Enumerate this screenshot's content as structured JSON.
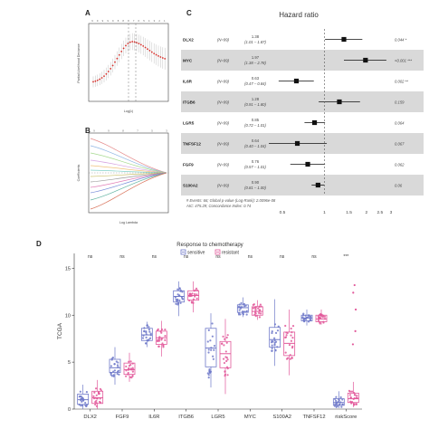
{
  "panels": {
    "a": "A",
    "b": "B",
    "c": "C",
    "d": "D"
  },
  "panel_a": {
    "ylabel": "Partial Likelihood Deviance",
    "xlabel": "Log(λ)",
    "top_counts": [
      "9",
      "9",
      "9",
      "9",
      "9",
      "8",
      "8",
      "8",
      "7",
      "6",
      "5",
      "4",
      "3",
      "2",
      "1"
    ]
  },
  "panel_b": {
    "ylabel": "Coefficients",
    "xlabel": "Log Lambda",
    "top_counts": [
      "9",
      "9",
      "8",
      "7",
      "5",
      "3"
    ]
  },
  "forest": {
    "title": "Hazard ratio",
    "footnote_1": "# Events: 66; Global p-value (Log-Rank): 2.0096e-08",
    "footnote_2": "AIC: 475.29; Concordance Index: 0.74",
    "axis_ticks": [
      "0.5",
      "1",
      "1.5",
      "2",
      "2.5",
      "3"
    ],
    "rows": [
      {
        "name": "DLX2",
        "n": "(N=99)",
        "hr": "1.38",
        "ci": "(1.01 – 1.87)",
        "p": "0.044 *",
        "shaded": false
      },
      {
        "name": "MYC",
        "n": "(N=99)",
        "hr": "1.97",
        "ci": "(1.38 – 2.78)",
        "p": "<0.001 ***",
        "shaded": true
      },
      {
        "name": "IL6R",
        "n": "(N=99)",
        "hr": "0.63",
        "ci": "(0.47 – 0.84)",
        "p": "0.002 **",
        "shaded": false
      },
      {
        "name": "ITGB6",
        "n": "(N=99)",
        "hr": "1.28",
        "ci": "(0.91 – 1.80)",
        "p": "0.159",
        "shaded": true
      },
      {
        "name": "LGR5",
        "n": "(N=99)",
        "hr": "0.85",
        "ci": "(0.72 – 1.01)",
        "p": "0.064",
        "shaded": false
      },
      {
        "name": "TNFSF12",
        "n": "(N=99)",
        "hr": "0.64",
        "ci": "(0.40 – 1.04)",
        "p": "0.067",
        "shaded": true
      },
      {
        "name": "FGF9",
        "n": "(N=99)",
        "hr": "0.76",
        "ci": "(0.57 – 1.01)",
        "p": "0.062",
        "shaded": false
      },
      {
        "name": "S100A2",
        "n": "(N=99)",
        "hr": "0.90",
        "ci": "(0.81 – 1.00)",
        "p": "0.06",
        "shaded": true
      }
    ]
  },
  "chart_data": {
    "type": "box",
    "title": "Response to chemotherapy",
    "legend": {
      "title": "Response to chemotherapy",
      "items": [
        "sensitive",
        "resistant"
      ],
      "placement": "top"
    },
    "ylabel": "TCGA",
    "xlabel": "",
    "ylim": [
      0,
      16
    ],
    "yticks": [
      "0",
      "5",
      "10",
      "15"
    ],
    "categories": [
      "DLX2",
      "FGF9",
      "IL6R",
      "ITGB6",
      "LGR5",
      "MYC",
      "S100A2",
      "TNFSF12",
      "riskScore"
    ],
    "significance": [
      "ns",
      "ns",
      "ns",
      "ns",
      "ns",
      "ns",
      "ns",
      "ns",
      "***"
    ],
    "series": [
      {
        "name": "sensitive",
        "color": "#6f79c9",
        "boxes": [
          {
            "min": 0.0,
            "q1": 0.5,
            "median": 1.0,
            "q3": 1.6,
            "max": 2.6
          },
          {
            "min": 2.6,
            "q1": 3.9,
            "median": 4.4,
            "q3": 5.3,
            "max": 6.6
          },
          {
            "min": 6.6,
            "q1": 7.3,
            "median": 7.9,
            "q3": 8.6,
            "max": 9.3
          },
          {
            "min": 9.9,
            "q1": 11.4,
            "median": 12.0,
            "q3": 12.6,
            "max": 13.6
          },
          {
            "min": 2.3,
            "q1": 4.5,
            "median": 6.5,
            "q3": 8.6,
            "max": 10.2
          },
          {
            "min": 9.8,
            "q1": 10.3,
            "median": 10.8,
            "q3": 11.1,
            "max": 11.9
          },
          {
            "min": 4.6,
            "q1": 6.6,
            "median": 7.4,
            "q3": 8.7,
            "max": 11.7
          },
          {
            "min": 8.9,
            "q1": 9.4,
            "median": 9.7,
            "q3": 10.0,
            "max": 10.6
          },
          {
            "min": 0.1,
            "q1": 0.4,
            "median": 0.7,
            "q3": 1.1,
            "max": 1.9
          }
        ]
      },
      {
        "name": "resistant",
        "color": "#e2589a",
        "boxes": [
          {
            "min": 0.0,
            "q1": 0.6,
            "median": 1.2,
            "q3": 1.9,
            "max": 3.1
          },
          {
            "min": 2.9,
            "q1": 3.7,
            "median": 4.2,
            "q3": 4.9,
            "max": 6.0
          },
          {
            "min": 5.6,
            "q1": 6.9,
            "median": 7.6,
            "q3": 8.3,
            "max": 9.4
          },
          {
            "min": 10.3,
            "q1": 11.6,
            "median": 12.1,
            "q3": 12.6,
            "max": 13.6
          },
          {
            "min": 1.6,
            "q1": 4.4,
            "median": 5.9,
            "q3": 7.2,
            "max": 9.6
          },
          {
            "min": 9.5,
            "q1": 10.0,
            "median": 10.4,
            "q3": 10.9,
            "max": 11.6
          },
          {
            "min": 3.6,
            "q1": 5.7,
            "median": 7.0,
            "q3": 8.2,
            "max": 10.6
          },
          {
            "min": 9.0,
            "q1": 9.3,
            "median": 9.6,
            "q3": 10.0,
            "max": 10.6
          },
          {
            "min": 0.2,
            "q1": 0.7,
            "median": 1.1,
            "q3": 1.7,
            "max": 2.9
          }
        ]
      }
    ]
  }
}
